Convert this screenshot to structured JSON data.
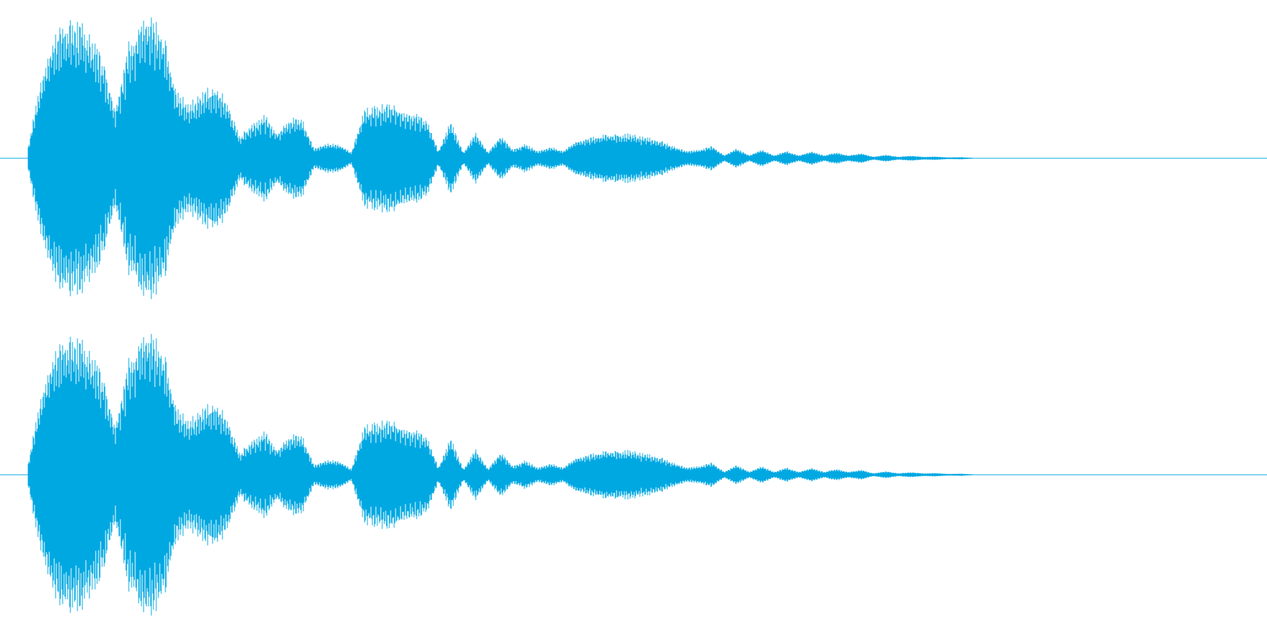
{
  "waveform": {
    "color": "#00a8e2",
    "channels": [
      {
        "envelope": [
          0.08,
          0.55,
          0.86,
          0.98,
          0.95,
          0.88,
          0.7,
          0.35,
          0.78,
          0.98,
          0.97,
          0.85,
          0.45,
          0.38,
          0.46,
          0.5,
          0.4,
          0.15,
          0.24,
          0.3,
          0.18,
          0.28,
          0.28,
          0.07,
          0.1,
          0.1,
          0.04,
          0.34,
          0.36,
          0.38,
          0.35,
          0.32,
          0.28,
          0.05,
          0.26,
          0.04,
          0.18,
          0.04,
          0.16,
          0.06,
          0.1,
          0.05,
          0.08,
          0.05,
          0.12,
          0.14,
          0.16,
          0.17,
          0.17,
          0.16,
          0.14,
          0.12,
          0.08,
          0.05,
          0.06,
          0.09,
          0.02,
          0.07,
          0.02,
          0.06,
          0.02,
          0.05,
          0.02,
          0.05,
          0.02,
          0.04,
          0.02,
          0.035,
          0.01,
          0.025,
          0.01,
          0.018,
          0.01,
          0.012,
          0.006,
          0.008,
          0.003,
          0.0
        ]
      },
      {
        "envelope": [
          0.08,
          0.55,
          0.86,
          0.98,
          0.95,
          0.88,
          0.7,
          0.35,
          0.78,
          0.98,
          0.97,
          0.85,
          0.45,
          0.38,
          0.46,
          0.5,
          0.4,
          0.15,
          0.24,
          0.3,
          0.18,
          0.28,
          0.28,
          0.07,
          0.1,
          0.1,
          0.04,
          0.34,
          0.36,
          0.38,
          0.35,
          0.32,
          0.28,
          0.05,
          0.26,
          0.04,
          0.18,
          0.04,
          0.16,
          0.06,
          0.1,
          0.05,
          0.08,
          0.05,
          0.12,
          0.14,
          0.16,
          0.17,
          0.17,
          0.16,
          0.14,
          0.12,
          0.08,
          0.05,
          0.06,
          0.09,
          0.02,
          0.07,
          0.02,
          0.06,
          0.02,
          0.05,
          0.02,
          0.05,
          0.02,
          0.04,
          0.02,
          0.035,
          0.01,
          0.025,
          0.01,
          0.018,
          0.01,
          0.012,
          0.006,
          0.008,
          0.003,
          0.0
        ]
      }
    ]
  }
}
